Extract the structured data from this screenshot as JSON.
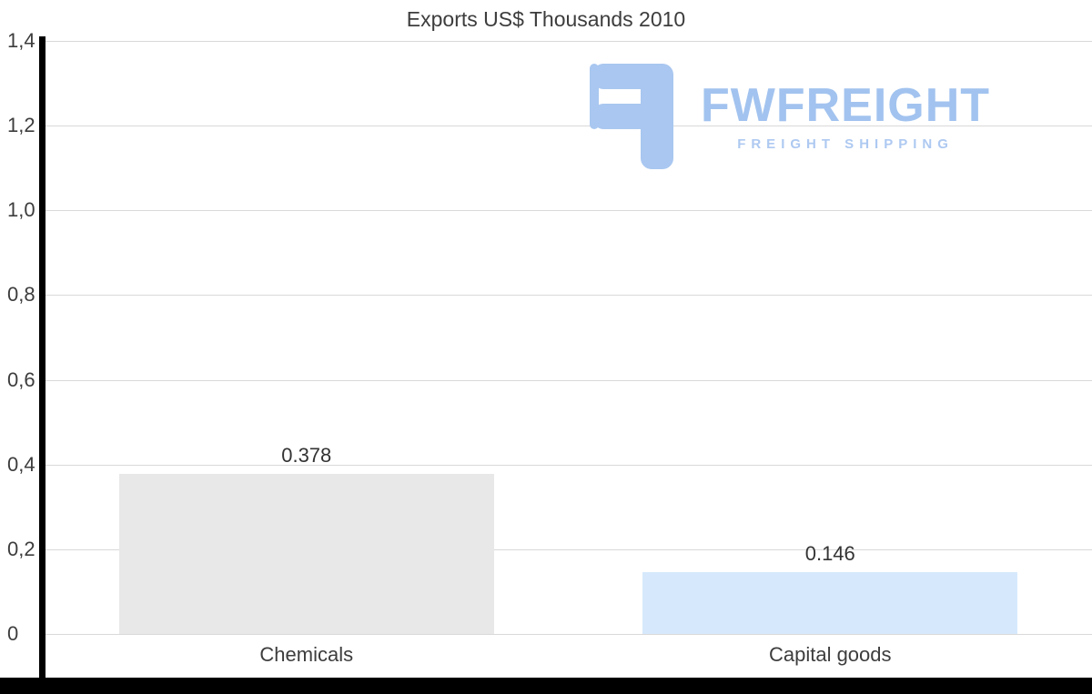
{
  "page": {
    "background": "#ffffff"
  },
  "logo": {
    "brand": "FWFREIGHT",
    "tagline": "FREIGHT SHIPPING",
    "color": "#a9c7f0"
  },
  "chart_data": {
    "type": "bar",
    "title": "Exports US$ Thousands 2010",
    "categories": [
      "Chemicals",
      "Capital goods"
    ],
    "values": [
      0.378,
      0.146
    ],
    "value_labels": [
      "0.378",
      "0.146"
    ],
    "bar_colors": [
      "#e8e8e8",
      "#d6e9fc"
    ],
    "xlabel": "",
    "ylabel": "",
    "ylim": [
      0,
      1.4
    ],
    "yticks": [
      0,
      0.2,
      0.4,
      0.6,
      0.8,
      1.0,
      1.2,
      1.4
    ],
    "ytick_labels": [
      "0",
      "0,2",
      "0,4",
      "0,6",
      "0,8",
      "1,0",
      "1,2",
      "1,4"
    ],
    "grid": true,
    "gridline_color": "#d9d9d9",
    "axis_color": "#000000",
    "legend": "none"
  }
}
